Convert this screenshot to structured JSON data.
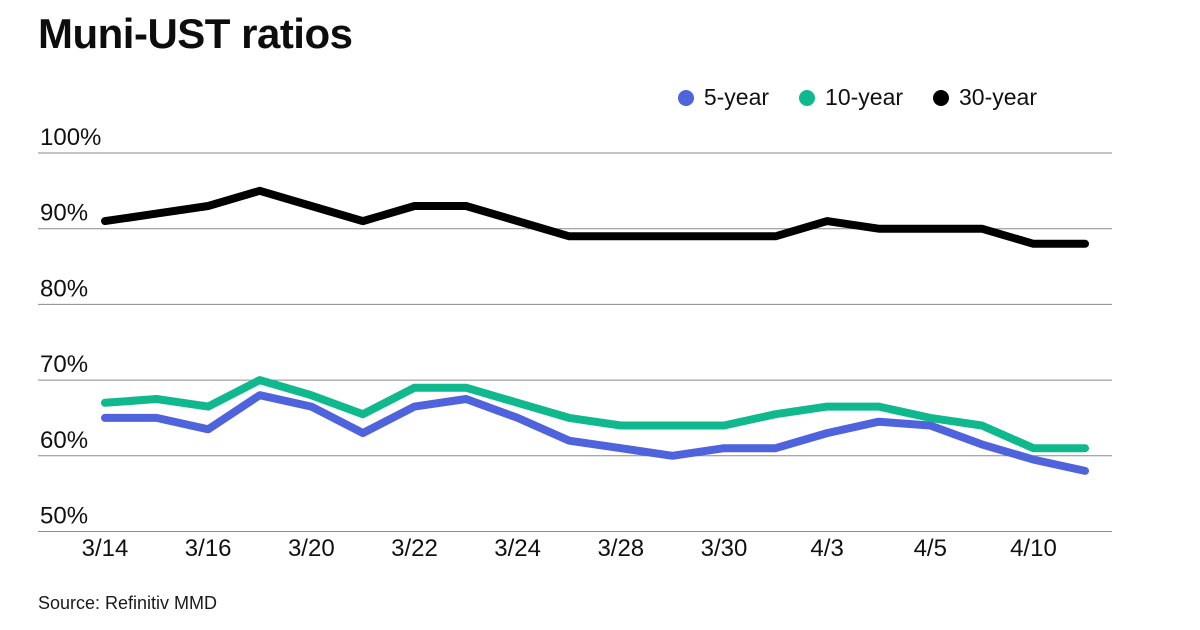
{
  "page": {
    "title": "Muni-UST ratios",
    "source": "Source: Refinitiv MMD"
  },
  "legend": [
    {
      "label": "5-year",
      "color": "#4f63dd"
    },
    {
      "label": "10-year",
      "color": "#10b98d"
    },
    {
      "label": "30-year",
      "color": "#000000"
    }
  ],
  "chart_data": {
    "type": "line",
    "title": "Muni-UST ratios",
    "source": "Source: Refinitiv MMD",
    "x": [
      "3/14",
      "3/15",
      "3/16",
      "3/17",
      "3/20",
      "3/21",
      "3/22",
      "3/23",
      "3/24",
      "3/27",
      "3/28",
      "3/29",
      "3/30",
      "3/31",
      "4/3",
      "4/4",
      "4/5",
      "4/6",
      "4/10",
      "4/11"
    ],
    "x_tick_labels": [
      "3/14",
      "3/16",
      "3/20",
      "3/22",
      "3/24",
      "3/28",
      "3/30",
      "4/3",
      "4/5",
      "4/10"
    ],
    "series": [
      {
        "name": "5-year",
        "color": "#4f63dd",
        "values": [
          65,
          65,
          63.5,
          68,
          66.5,
          63,
          66.5,
          67.5,
          65,
          62,
          61,
          60,
          61,
          61,
          63,
          64.5,
          64,
          61.5,
          59.5,
          58
        ]
      },
      {
        "name": "10-year",
        "color": "#10b98d",
        "values": [
          67,
          67.5,
          66.5,
          70,
          68,
          65.5,
          69,
          69,
          67,
          65,
          64,
          64,
          64,
          65.5,
          66.5,
          66.5,
          65,
          64,
          61,
          61
        ]
      },
      {
        "name": "30-year",
        "color": "#000000",
        "values": [
          91,
          92,
          93,
          95,
          93,
          91,
          93,
          93,
          91,
          89,
          89,
          89,
          89,
          89,
          91,
          90,
          90,
          90,
          88,
          88
        ]
      }
    ],
    "ylim": [
      50,
      100
    ],
    "yticks": [
      100,
      90,
      80,
      70,
      60,
      50
    ],
    "ytick_format": "{v}%",
    "grid": true,
    "gridline_color": "#8a8a8a",
    "legend_position": "top-right",
    "line_width": 8
  }
}
